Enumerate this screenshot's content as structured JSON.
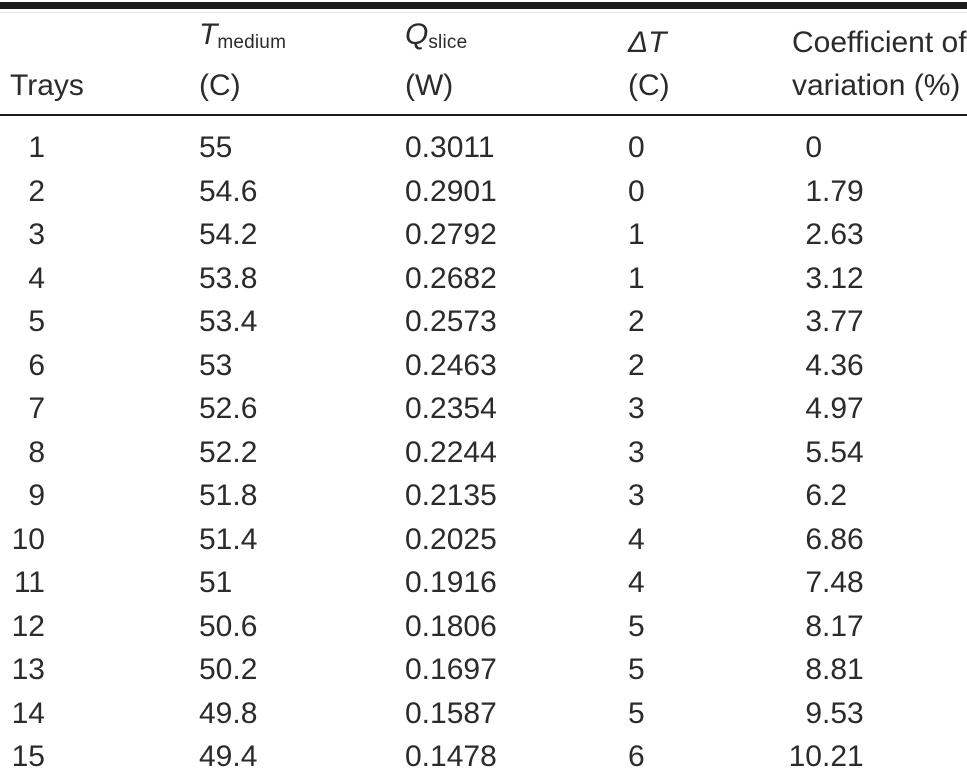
{
  "table": {
    "columns": [
      {
        "id": "trays",
        "label": "Trays"
      },
      {
        "id": "t-medium",
        "symbol": "T",
        "subscript": "medium",
        "unit": "(C)"
      },
      {
        "id": "q-slice",
        "symbol": "Q",
        "subscript": "slice",
        "unit": "(W)"
      },
      {
        "id": "delta-t",
        "symbol": "ΔT",
        "subscript": "",
        "unit": "(C)"
      },
      {
        "id": "cv",
        "header_line1": "Coefficient of",
        "header_line2": "variation (%)",
        "decimal_align": true
      }
    ],
    "rows": [
      [
        "1",
        "55",
        "0.3011",
        "0",
        "0"
      ],
      [
        "2",
        "54.6",
        "0.2901",
        "0",
        "1.79"
      ],
      [
        "3",
        "54.2",
        "0.2792",
        "1",
        "2.63"
      ],
      [
        "4",
        "53.8",
        "0.2682",
        "1",
        "3.12"
      ],
      [
        "5",
        "53.4",
        "0.2573",
        "2",
        "3.77"
      ],
      [
        "6",
        "53",
        "0.2463",
        "2",
        "4.36"
      ],
      [
        "7",
        "52.6",
        "0.2354",
        "3",
        "4.97"
      ],
      [
        "8",
        "52.2",
        "0.2244",
        "3",
        "5.54"
      ],
      [
        "9",
        "51.8",
        "0.2135",
        "3",
        "6.2"
      ],
      [
        "10",
        "51.4",
        "0.2025",
        "4",
        "6.86"
      ],
      [
        "11",
        "51",
        "0.1916",
        "4",
        "7.48"
      ],
      [
        "12",
        "50.6",
        "0.1806",
        "5",
        "8.17"
      ],
      [
        "13",
        "50.2",
        "0.1697",
        "5",
        "8.81"
      ],
      [
        "14",
        "49.8",
        "0.1587",
        "5",
        "9.53"
      ],
      [
        "15",
        "49.4",
        "0.1478",
        "6",
        "10.21"
      ]
    ]
  },
  "rules": {
    "top_thick_color": "#1b1b1b",
    "thin_rule_color": "#1b1b1b",
    "light_shadow_color": "#e2e6e9",
    "text_color": "#2b2b2b"
  }
}
